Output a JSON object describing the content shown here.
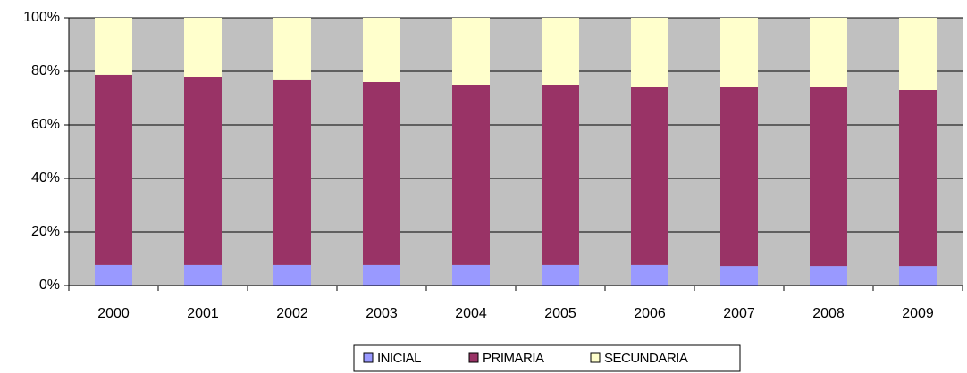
{
  "chart_data": {
    "type": "stacked_bar_100",
    "categories": [
      "2000",
      "2001",
      "2002",
      "2003",
      "2004",
      "2005",
      "2006",
      "2007",
      "2008",
      "2009"
    ],
    "series": [
      {
        "name": "INICIAL",
        "color": "#9999ff",
        "values": [
          7.7,
          7.7,
          7.7,
          7.7,
          7.7,
          7.7,
          7.7,
          7.3,
          7.3,
          7.3
        ]
      },
      {
        "name": "PRIMARIA",
        "color": "#993366",
        "values": [
          71.0,
          70.3,
          69.0,
          68.3,
          67.3,
          67.3,
          66.3,
          66.7,
          66.7,
          65.7
        ]
      },
      {
        "name": "SECUNDARIA",
        "color": "#ffffcc",
        "values": [
          21.3,
          22.0,
          23.3,
          24.0,
          25.0,
          25.0,
          26.0,
          26.0,
          26.0,
          27.0
        ]
      }
    ],
    "ylim": [
      0,
      100
    ],
    "yticks": [
      {
        "value": 0,
        "label": "0%"
      },
      {
        "value": 20,
        "label": "20%"
      },
      {
        "value": 40,
        "label": "40%"
      },
      {
        "value": 60,
        "label": "60%"
      },
      {
        "value": 80,
        "label": "80%"
      },
      {
        "value": 100,
        "label": "100%"
      }
    ],
    "grid": true,
    "background": "#c0c0c0",
    "legend": "bottom"
  }
}
